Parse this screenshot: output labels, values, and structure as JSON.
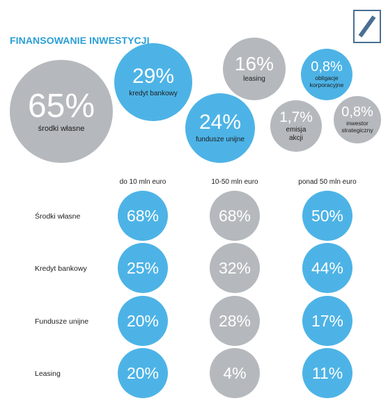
{
  "title": "FINANSOWANIE INWESTYCJI",
  "colors": {
    "blue": "#4db3e6",
    "grey": "#b5b9bd",
    "title": "#2a9fd6",
    "logo": "#4a6f92"
  },
  "chart_data": [
    {
      "type": "bubble",
      "title": "FINANSOWANIE INWESTYCJI",
      "items": [
        {
          "value": "65%",
          "label": "środki własne",
          "color": "grey"
        },
        {
          "value": "29%",
          "label": "kredyt bankowy",
          "color": "blue"
        },
        {
          "value": "24%",
          "label": "fundusze unijne",
          "color": "blue"
        },
        {
          "value": "16%",
          "label": "leasing",
          "color": "grey"
        },
        {
          "value": "1,7%",
          "label": "emisja akcji",
          "color": "grey"
        },
        {
          "value": "0,8%",
          "label": "obligacje korporacyjne",
          "color": "blue"
        },
        {
          "value": "0,8%",
          "label": "inwestor strategiczny",
          "color": "grey"
        }
      ]
    },
    {
      "type": "table",
      "columns": [
        "do 10 mln euro",
        "10-50 mln euro",
        "ponad 50 mln euro"
      ],
      "rows": [
        {
          "label": "Środki własne",
          "values": [
            "68%",
            "68%",
            "50%"
          ],
          "colors": [
            "blue",
            "grey",
            "blue"
          ]
        },
        {
          "label": "Kredyt bankowy",
          "values": [
            "25%",
            "32%",
            "44%"
          ],
          "colors": [
            "blue",
            "grey",
            "blue"
          ]
        },
        {
          "label": "Fundusze unijne",
          "values": [
            "20%",
            "28%",
            "17%"
          ],
          "colors": [
            "blue",
            "grey",
            "blue"
          ]
        },
        {
          "label": "Leasing",
          "values": [
            "20%",
            "4%",
            "11%"
          ],
          "colors": [
            "blue",
            "grey",
            "blue"
          ]
        }
      ]
    }
  ]
}
